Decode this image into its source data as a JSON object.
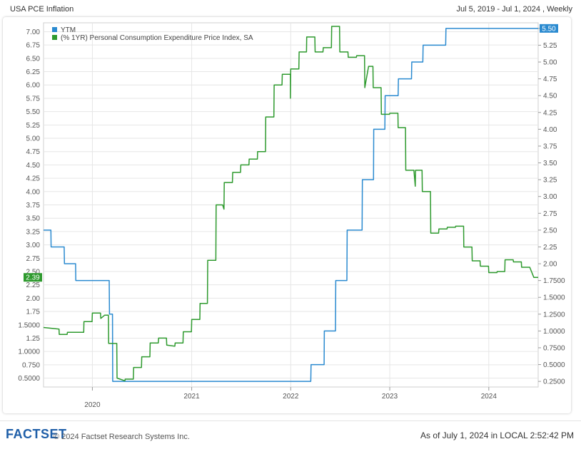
{
  "header": {
    "title": "USA PCE Inflation",
    "range": "Jul 5, 2019 - Jul 1, 2024 , Weekly"
  },
  "footer": {
    "logo": "FACTSET",
    "copyright": "© 2024 Factset Research Systems Inc.",
    "as_of": "As of July 1, 2024 in LOCAL 2:52:42 PM"
  },
  "colors": {
    "ytm": "#2a8ad0",
    "pce": "#2e9a2e",
    "grid": "#e6e6e6",
    "axis": "#555555"
  },
  "chart_data": {
    "type": "line",
    "x_range": [
      "2019-07-05",
      "2024-07-01"
    ],
    "x_ticks": [
      {
        "date": "2020-01-01",
        "label": "2020"
      },
      {
        "date": "2021-01-01",
        "label": "2021"
      },
      {
        "date": "2022-01-01",
        "label": "2022"
      },
      {
        "date": "2023-01-01",
        "label": "2023"
      },
      {
        "date": "2024-01-01",
        "label": "2024"
      }
    ],
    "grid": true,
    "legend_position": "top-left",
    "left_axis": {
      "ylim": [
        0.3333,
        7.1667
      ],
      "ticks": [
        0.5,
        0.75,
        1.0,
        1.25,
        1.5,
        1.75,
        2.0,
        2.25,
        2.5,
        2.75,
        3.0,
        3.25,
        3.5,
        3.75,
        4.0,
        4.25,
        4.5,
        4.75,
        5.0,
        5.25,
        5.5,
        5.75,
        6.0,
        6.25,
        6.5,
        6.75,
        7.0
      ],
      "tick_labels": [
        "0.5000",
        "0.750",
        "1.0000",
        "1.25",
        "1.5000",
        "1.75",
        "2.00",
        "2.25",
        "2.50",
        "2.75",
        "3.00",
        "3.25",
        "3.50",
        "3.75",
        "4.00",
        "4.25",
        "4.50",
        "4.75",
        "5.00",
        "5.25",
        "5.50",
        "5.75",
        "6.00",
        "6.25",
        "6.50",
        "6.75",
        "7.00"
      ]
    },
    "right_axis": {
      "ylim": [
        0.1667,
        5.5833
      ],
      "ticks": [
        0.25,
        0.5,
        0.75,
        1.0,
        1.25,
        1.5,
        1.75,
        2.0,
        2.25,
        2.5,
        2.75,
        3.0,
        3.25,
        3.5,
        3.75,
        4.0,
        4.25,
        4.5,
        4.75,
        5.0,
        5.25,
        5.5
      ],
      "tick_labels": [
        "0.2500",
        "0.5000",
        "0.7500",
        "1.0000",
        "1.2500",
        "1.5000",
        "1.7500",
        "2.00",
        "2.25",
        "2.50",
        "2.75",
        "3.00",
        "3.25",
        "3.50",
        "3.75",
        "4.00",
        "4.25",
        "4.50",
        "4.75",
        "5.00",
        "5.25",
        "5.50"
      ]
    },
    "series": [
      {
        "name": "YTM",
        "axis": "right",
        "color": "#2a8ad0",
        "last_value_label": "5.50",
        "points": [
          [
            "2019-07-05",
            2.5
          ],
          [
            "2019-08-01",
            2.5
          ],
          [
            "2019-08-02",
            2.25
          ],
          [
            "2019-09-19",
            2.25
          ],
          [
            "2019-09-20",
            2.0
          ],
          [
            "2019-10-31",
            2.0
          ],
          [
            "2019-11-01",
            1.75
          ],
          [
            "2020-03-03",
            1.75
          ],
          [
            "2020-03-04",
            1.25
          ],
          [
            "2020-03-15",
            1.25
          ],
          [
            "2020-03-16",
            0.25
          ],
          [
            "2022-03-16",
            0.25
          ],
          [
            "2022-03-17",
            0.5
          ],
          [
            "2022-05-04",
            0.5
          ],
          [
            "2022-05-05",
            1.0
          ],
          [
            "2022-06-15",
            1.0
          ],
          [
            "2022-06-16",
            1.75
          ],
          [
            "2022-07-27",
            1.75
          ],
          [
            "2022-07-28",
            2.5
          ],
          [
            "2022-09-21",
            2.5
          ],
          [
            "2022-09-22",
            3.25
          ],
          [
            "2022-11-02",
            3.25
          ],
          [
            "2022-11-03",
            4.0
          ],
          [
            "2022-12-14",
            4.0
          ],
          [
            "2022-12-15",
            4.5
          ],
          [
            "2023-02-01",
            4.5
          ],
          [
            "2023-02-02",
            4.75
          ],
          [
            "2023-03-22",
            4.75
          ],
          [
            "2023-03-23",
            5.0
          ],
          [
            "2023-05-03",
            5.0
          ],
          [
            "2023-05-04",
            5.25
          ],
          [
            "2023-07-26",
            5.25
          ],
          [
            "2023-07-27",
            5.5
          ],
          [
            "2024-07-01",
            5.5
          ]
        ]
      },
      {
        "name": "(% 1YR) Personal Consumption Expenditure Price Index, SA",
        "axis": "left",
        "color": "#2e9a2e",
        "last_value_label": "2.39",
        "points": [
          [
            "2019-07-05",
            1.45
          ],
          [
            "2019-08-31",
            1.42
          ],
          [
            "2019-09-01",
            1.32
          ],
          [
            "2019-09-30",
            1.32
          ],
          [
            "2019-10-01",
            1.36
          ],
          [
            "2019-11-30",
            1.36
          ],
          [
            "2019-12-01",
            1.56
          ],
          [
            "2019-12-31",
            1.56
          ],
          [
            "2020-01-01",
            1.72
          ],
          [
            "2020-01-31",
            1.72
          ],
          [
            "2020-02-01",
            1.62
          ],
          [
            "2020-02-15",
            1.68
          ],
          [
            "2020-02-29",
            1.68
          ],
          [
            "2020-03-01",
            1.15
          ],
          [
            "2020-03-31",
            1.15
          ],
          [
            "2020-04-01",
            0.5
          ],
          [
            "2020-04-30",
            0.45
          ],
          [
            "2020-05-01",
            0.48
          ],
          [
            "2020-05-31",
            0.48
          ],
          [
            "2020-06-01",
            0.7
          ],
          [
            "2020-06-30",
            0.7
          ],
          [
            "2020-07-01",
            0.9
          ],
          [
            "2020-07-31",
            0.9
          ],
          [
            "2020-08-01",
            1.16
          ],
          [
            "2020-08-31",
            1.16
          ],
          [
            "2020-09-01",
            1.25
          ],
          [
            "2020-09-30",
            1.25
          ],
          [
            "2020-10-01",
            1.12
          ],
          [
            "2020-10-31",
            1.1
          ],
          [
            "2020-11-01",
            1.16
          ],
          [
            "2020-11-30",
            1.16
          ],
          [
            "2020-12-01",
            1.37
          ],
          [
            "2020-12-31",
            1.37
          ],
          [
            "2021-01-01",
            1.6
          ],
          [
            "2021-01-31",
            1.6
          ],
          [
            "2021-02-01",
            1.9
          ],
          [
            "2021-02-28",
            1.9
          ],
          [
            "2021-03-01",
            2.71
          ],
          [
            "2021-03-31",
            2.71
          ],
          [
            "2021-04-01",
            3.75
          ],
          [
            "2021-04-25",
            3.75
          ],
          [
            "2021-04-30",
            3.67
          ],
          [
            "2021-05-01",
            4.17
          ],
          [
            "2021-05-31",
            4.17
          ],
          [
            "2021-06-01",
            4.36
          ],
          [
            "2021-06-30",
            4.36
          ],
          [
            "2021-07-01",
            4.5
          ],
          [
            "2021-07-31",
            4.5
          ],
          [
            "2021-08-01",
            4.61
          ],
          [
            "2021-08-31",
            4.61
          ],
          [
            "2021-09-01",
            4.75
          ],
          [
            "2021-09-30",
            4.75
          ],
          [
            "2021-10-01",
            5.4
          ],
          [
            "2021-10-31",
            5.4
          ],
          [
            "2021-11-01",
            6.0
          ],
          [
            "2021-11-30",
            6.0
          ],
          [
            "2021-12-01",
            6.2
          ],
          [
            "2021-12-31",
            6.2
          ],
          [
            "2021-12-31",
            5.75
          ],
          [
            "2022-01-01",
            6.3
          ],
          [
            "2022-01-31",
            6.3
          ],
          [
            "2022-02-01",
            6.62
          ],
          [
            "2022-02-28",
            6.62
          ],
          [
            "2022-03-01",
            6.9
          ],
          [
            "2022-03-31",
            6.9
          ],
          [
            "2022-04-01",
            6.62
          ],
          [
            "2022-04-30",
            6.62
          ],
          [
            "2022-05-01",
            6.7
          ],
          [
            "2022-05-31",
            6.7
          ],
          [
            "2022-06-01",
            7.1
          ],
          [
            "2022-06-30",
            7.1
          ],
          [
            "2022-07-01",
            6.62
          ],
          [
            "2022-07-31",
            6.62
          ],
          [
            "2022-08-01",
            6.52
          ],
          [
            "2022-08-31",
            6.52
          ],
          [
            "2022-09-01",
            6.55
          ],
          [
            "2022-09-30",
            6.55
          ],
          [
            "2022-10-01",
            5.95
          ],
          [
            "2022-10-15",
            6.35
          ],
          [
            "2022-10-31",
            6.35
          ],
          [
            "2022-11-01",
            5.95
          ],
          [
            "2022-11-30",
            5.95
          ],
          [
            "2022-12-01",
            5.45
          ],
          [
            "2022-12-31",
            5.45
          ],
          [
            "2023-01-01",
            5.47
          ],
          [
            "2023-01-31",
            5.47
          ],
          [
            "2023-02-01",
            5.2
          ],
          [
            "2023-02-28",
            5.2
          ],
          [
            "2023-03-01",
            4.4
          ],
          [
            "2023-03-31",
            4.4
          ],
          [
            "2023-04-05",
            4.1
          ],
          [
            "2023-04-06",
            4.4
          ],
          [
            "2023-04-30",
            4.4
          ],
          [
            "2023-05-01",
            4.0
          ],
          [
            "2023-05-31",
            4.0
          ],
          [
            "2023-06-01",
            3.22
          ],
          [
            "2023-06-30",
            3.22
          ],
          [
            "2023-07-01",
            3.3
          ],
          [
            "2023-07-31",
            3.3
          ],
          [
            "2023-08-01",
            3.33
          ],
          [
            "2023-08-31",
            3.33
          ],
          [
            "2023-09-01",
            3.35
          ],
          [
            "2023-09-30",
            3.35
          ],
          [
            "2023-10-01",
            2.96
          ],
          [
            "2023-10-31",
            2.96
          ],
          [
            "2023-11-01",
            2.7
          ],
          [
            "2023-11-30",
            2.7
          ],
          [
            "2023-12-01",
            2.6
          ],
          [
            "2023-12-31",
            2.6
          ],
          [
            "2024-01-01",
            2.48
          ],
          [
            "2024-01-31",
            2.48
          ],
          [
            "2024-02-01",
            2.5
          ],
          [
            "2024-02-29",
            2.5
          ],
          [
            "2024-03-01",
            2.72
          ],
          [
            "2024-03-31",
            2.72
          ],
          [
            "2024-04-01",
            2.68
          ],
          [
            "2024-04-30",
            2.68
          ],
          [
            "2024-05-01",
            2.58
          ],
          [
            "2024-05-31",
            2.58
          ],
          [
            "2024-06-15",
            2.39
          ],
          [
            "2024-07-01",
            2.39
          ]
        ]
      }
    ]
  }
}
